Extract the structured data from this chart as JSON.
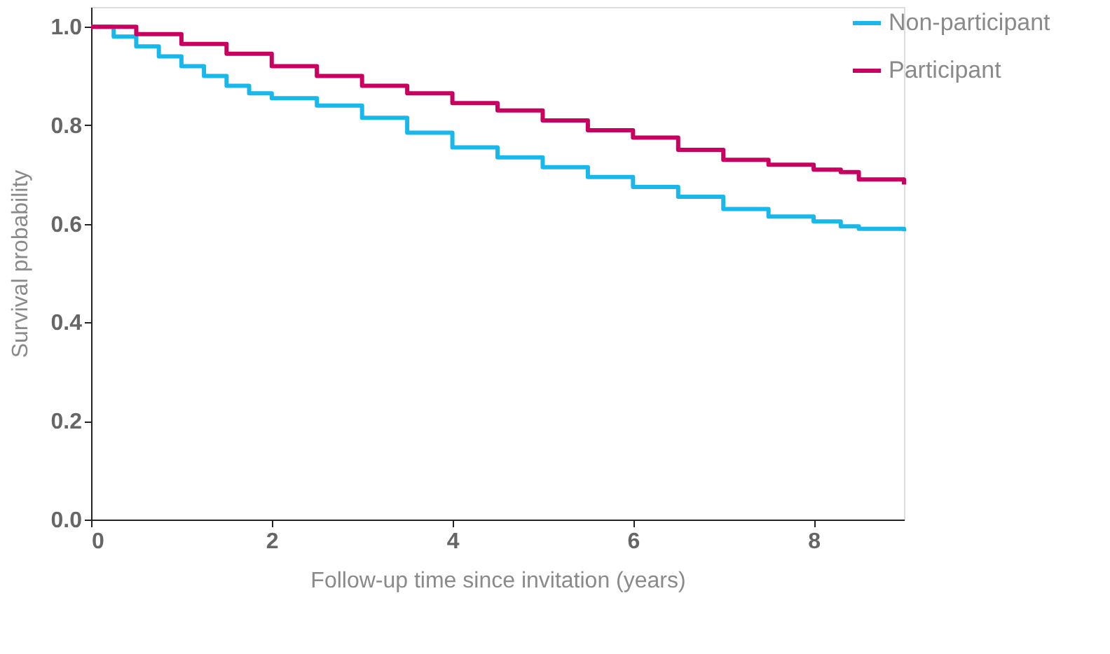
{
  "chart_data": {
    "type": "step",
    "xlabel": "Follow-up time since invitation (years)",
    "ylabel": "Survival probability",
    "xlim": [
      0,
      9
    ],
    "xticks": [
      0,
      2,
      4,
      6,
      8
    ],
    "ylim": [
      0,
      1.04
    ],
    "yticks": [
      {
        "value": 0,
        "label": "0.0"
      },
      {
        "value": 0.2,
        "label": "0.2"
      },
      {
        "value": 0.4,
        "label": "0.4"
      },
      {
        "value": 0.6,
        "label": "0.6"
      },
      {
        "value": 0.8,
        "label": "0.8"
      },
      {
        "value": 1,
        "label": "1.0"
      }
    ],
    "grid": false,
    "legend": "top right",
    "line_style": "solid",
    "marker": "none",
    "series": [
      {
        "name": "Non-participant",
        "color": "#1ab7ea",
        "x": [
          0,
          0.25,
          0.5,
          0.75,
          1,
          1.25,
          1.5,
          1.75,
          2,
          2.5,
          3,
          3.5,
          4,
          4.5,
          5,
          5.5,
          6,
          6.5,
          7,
          7.5,
          8,
          8.3,
          8.5,
          9
        ],
        "values": [
          1.0,
          0.98,
          0.96,
          0.94,
          0.92,
          0.9,
          0.88,
          0.865,
          0.855,
          0.84,
          0.815,
          0.785,
          0.755,
          0.735,
          0.715,
          0.695,
          0.675,
          0.655,
          0.63,
          0.615,
          0.605,
          0.595,
          0.59,
          0.585
        ]
      },
      {
        "name": "Participant",
        "color": "#c8005f",
        "x": [
          0,
          0.5,
          1,
          1.5,
          2,
          2.5,
          3,
          3.5,
          4,
          4.5,
          5,
          5.5,
          6,
          6.5,
          7,
          7.5,
          8,
          8.3,
          8.5,
          9
        ],
        "values": [
          1.0,
          0.985,
          0.965,
          0.945,
          0.92,
          0.9,
          0.88,
          0.865,
          0.845,
          0.83,
          0.81,
          0.79,
          0.775,
          0.75,
          0.73,
          0.72,
          0.71,
          0.705,
          0.69,
          0.68
        ]
      }
    ]
  }
}
